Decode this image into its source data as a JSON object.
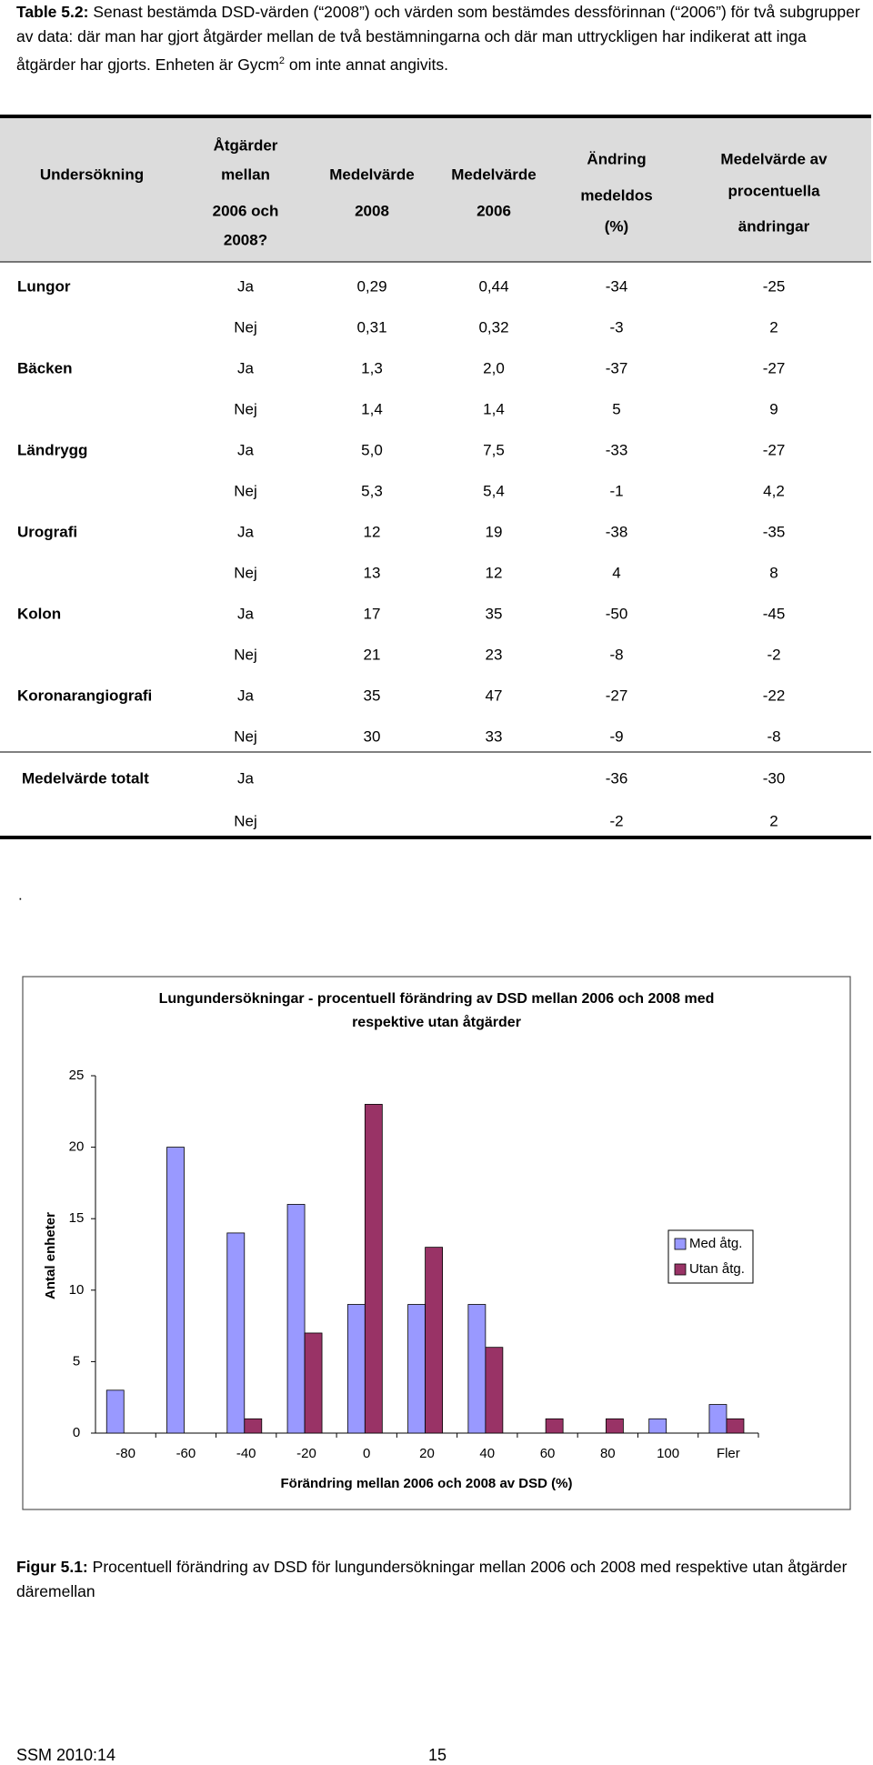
{
  "caption": {
    "label": "Table 5.2:",
    "text": "Senast bestämda DSD-värden (“2008”) och värden som bestämdes dessförinnan (“2006”) för två subgrupper av data: där man har gjort åtgärder mellan de två bestämningarna och där man uttryckligen har indikerat att inga åtgärder har gjorts.  Enheten är Gycm",
    "sup": "2",
    "text_end": " om inte annat angivits."
  },
  "table": {
    "headers": [
      [
        "Undersökning"
      ],
      [
        "Åtgärder",
        "mellan",
        "2006 och",
        "2008?"
      ],
      [
        "Medelvärde",
        "2008"
      ],
      [
        "Medelvärde",
        "2006"
      ],
      [
        "Ändring",
        "medeldos",
        "(%)"
      ],
      [
        "Medelvärde av",
        "procentuella",
        "ändringar"
      ]
    ],
    "rows": [
      [
        "Lungor",
        "Ja",
        "0,29",
        "0,44",
        "-34",
        "-25"
      ],
      [
        null,
        "Nej",
        "0,31",
        "0,32",
        "-3",
        "2"
      ],
      [
        "Bäcken",
        "Ja",
        "1,3",
        "2,0",
        "-37",
        "-27"
      ],
      [
        null,
        "Nej",
        "1,4",
        "1,4",
        "5",
        "9"
      ],
      [
        "Ländrygg",
        "Ja",
        "5,0",
        "7,5",
        "-33",
        "-27"
      ],
      [
        null,
        "Nej",
        "5,3",
        "5,4",
        "-1",
        "4,2"
      ],
      [
        "Urografi",
        "Ja",
        "12",
        "19",
        "-38",
        "-35"
      ],
      [
        null,
        "Nej",
        "13",
        "12",
        "4",
        "8"
      ],
      [
        "Kolon",
        "Ja",
        "17",
        "35",
        "-50",
        "-45"
      ],
      [
        null,
        "Nej",
        "21",
        "23",
        "-8",
        "-2"
      ],
      [
        "Koronarangiografi",
        "Ja",
        "35",
        "47",
        "-27",
        "-22"
      ],
      [
        null,
        "Nej",
        "30",
        "33",
        "-9",
        "-8"
      ]
    ],
    "total_rows": [
      [
        "Medelvärde totalt",
        "Ja",
        null,
        null,
        "-36",
        "-30"
      ],
      [
        null,
        "Nej",
        null,
        null,
        "-2",
        "2"
      ]
    ]
  },
  "separator": ".",
  "chart_data": {
    "type": "bar",
    "title": [
      "Lungundersökningar - procentuell förändring av DSD mellan 2006 och 2008 med",
      "respektive utan åtgärder"
    ],
    "x_label": "Förändring mellan 2006 och 2008 av DSD (%)",
    "y_label": "Antal enheter",
    "categories": [
      "-80",
      "-60",
      "-40",
      "-20",
      "0",
      "20",
      "40",
      "60",
      "80",
      "100",
      "Fler"
    ],
    "series": [
      {
        "name": "Med åtg.",
        "color": "#9999ff",
        "values": [
          3,
          20,
          14,
          16,
          9,
          9,
          9,
          0,
          0,
          1,
          2
        ]
      },
      {
        "name": "Utan åtg.",
        "color": "#993366",
        "values": [
          0,
          0,
          1,
          7,
          23,
          13,
          6,
          1,
          1,
          0,
          1
        ]
      }
    ],
    "ylim": [
      0,
      25
    ],
    "yticks": [
      0,
      5,
      10,
      15,
      20,
      25
    ],
    "grid": false,
    "legend": "right"
  },
  "figure_caption": {
    "label": "Figur 5.1:",
    "text": "Procentuell förändring av DSD för lungundersökningar mellan 2006 och 2008 med respektive utan åtgärder däremellan"
  },
  "footer": {
    "left": "SSM 2010:14",
    "page": "15"
  }
}
